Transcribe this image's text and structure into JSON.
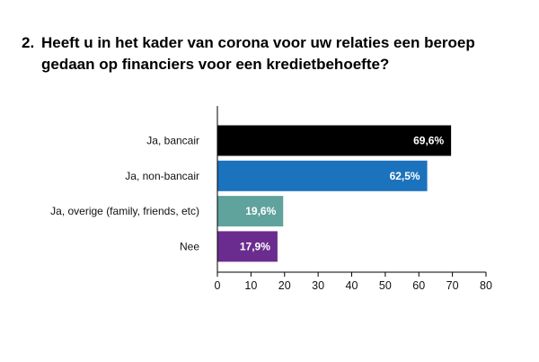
{
  "title": {
    "number": "2.",
    "text": "Heeft u in het kader van corona voor uw relaties een beroep gedaan op financiers voor een kredietbehoefte?"
  },
  "chart_data": {
    "type": "bar",
    "orientation": "horizontal",
    "categories": [
      "Ja, bancair",
      "Ja, non-bancair",
      "Ja, overige (family, friends, etc)",
      "Nee"
    ],
    "values": [
      69.6,
      62.5,
      19.6,
      17.9
    ],
    "value_labels": [
      "69,6%",
      "62,5%",
      "19,6%",
      "17,9%"
    ],
    "colors": [
      "#000000",
      "#1b72bd",
      "#5fa39c",
      "#6b2c8f"
    ],
    "xlim": [
      0,
      80
    ],
    "xticks": [
      0,
      10,
      20,
      30,
      40,
      50,
      60,
      70,
      80
    ],
    "grid": false,
    "legend": "none"
  }
}
